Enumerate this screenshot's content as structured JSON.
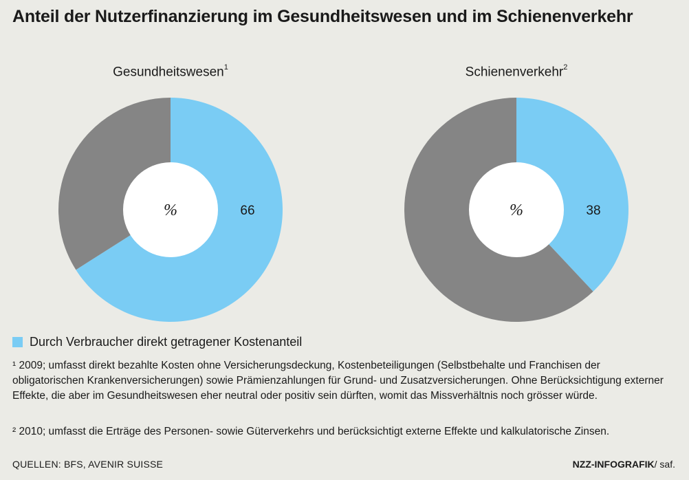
{
  "title": "Anteil der Nutzerfinanzierung im Gesundheitswesen und im Schienenverkehr",
  "colors": {
    "accent": "#7accf4",
    "rest": "#858585",
    "hole": "#ffffff",
    "background": "#ebebe6"
  },
  "chart_data": [
    {
      "type": "pie",
      "title": "Gesundheitswesen",
      "title_sup": "1",
      "center_label": "%",
      "value": 66,
      "value_label": "66",
      "remainder": 34
    },
    {
      "type": "pie",
      "title": "Schienenverkehr",
      "title_sup": "2",
      "center_label": "%",
      "value": 38,
      "value_label": "38",
      "remainder": 62
    }
  ],
  "legend": {
    "label": "Durch Verbraucher direkt getragener Kostenanteil"
  },
  "footnotes": [
    "¹ 2009; umfasst direkt bezahlte Kosten ohne Versicherungsdeckung, Kostenbeteiligungen (Selbstbehalte und Franchisen der obligatorischen Krankenversicherungen) sowie Prämienzahlungen für Grund- und Zusatzversicherungen. Ohne Berücksichtigung externer Effekte, die aber im Gesundheitswesen eher neutral oder positiv sein dürften, womit das Missverhältnis noch grösser würde.",
    "² 2010; umfasst die Erträge des Personen- sowie Güterverkehrs und berücksichtigt externe Effekte und kalkulatorische Zinsen."
  ],
  "sources": "QUELLEN: BFS, AVENIR SUISSE",
  "credit": {
    "brand": "NZZ-INFOGRAFIK",
    "author": "/ saf."
  }
}
